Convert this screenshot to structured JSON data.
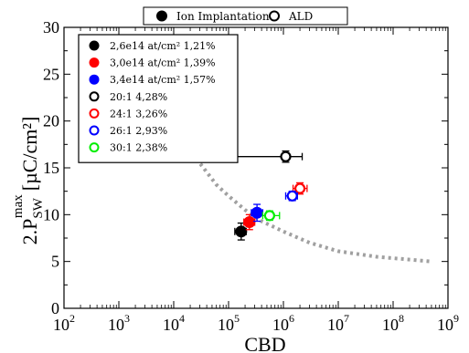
{
  "chart_data": {
    "type": "scatter",
    "x_scale": "log",
    "xlabel": "CBD",
    "ylabel_main": "2.P",
    "ylabel_sub": "SW",
    "ylabel_sup": "max",
    "ylabel_unit": "[µC/cm²]",
    "xlim": [
      100,
      1000000000
    ],
    "ylim": [
      0,
      30
    ],
    "x_ticks": [
      {
        "value": 100,
        "base": "10",
        "exp": "2"
      },
      {
        "value": 1000,
        "base": "10",
        "exp": "3"
      },
      {
        "value": 10000,
        "base": "10",
        "exp": "4"
      },
      {
        "value": 100000,
        "base": "10",
        "exp": "5"
      },
      {
        "value": 1000000,
        "base": "10",
        "exp": "6"
      },
      {
        "value": 10000000,
        "base": "10",
        "exp": "7"
      },
      {
        "value": 100000000,
        "base": "10",
        "exp": "8"
      },
      {
        "value": 1000000000,
        "base": "10",
        "exp": "9"
      }
    ],
    "y_ticks": [
      0,
      5,
      10,
      15,
      20,
      25,
      30
    ],
    "top_legend": [
      {
        "label": "Ion Implantation",
        "marker": "filled"
      },
      {
        "label": "ALD",
        "marker": "open"
      }
    ],
    "series": [
      {
        "name": "2,6e14 at/cm² 1,21%",
        "color": "#000000",
        "filled": true,
        "x": 170000,
        "y": 8.2,
        "x_low": 130000,
        "x_high": 210000,
        "y_err": 0.9
      },
      {
        "name": "3,0e14 at/cm² 1,39%",
        "color": "#ff0000",
        "filled": true,
        "x": 240000,
        "y": 9.2,
        "x_low": 190000,
        "x_high": 300000,
        "y_err": 0.8
      },
      {
        "name": "3,4e14 at/cm² 1,57%",
        "color": "#0000ff",
        "filled": true,
        "x": 330000,
        "y": 10.2,
        "x_low": 260000,
        "x_high": 420000,
        "y_err": 0.9
      },
      {
        "name": "20:1 4,28%",
        "color": "#000000",
        "filled": false,
        "x": 1100000,
        "y": 16.2,
        "x_low": 140000,
        "x_high": 2200000,
        "y_err": 0.6
      },
      {
        "name": "24:1 3,26%",
        "color": "#ff0000",
        "filled": false,
        "x": 2000000,
        "y": 12.8,
        "x_low": 1500000,
        "x_high": 2700000,
        "y_err": 0.6
      },
      {
        "name": "26:1 2,93%",
        "color": "#0000ff",
        "filled": false,
        "x": 1450000,
        "y": 12.0,
        "x_low": 1100000,
        "x_high": 1800000,
        "y_err": 0.5
      },
      {
        "name": "30:1 2,38%",
        "color": "#00ee00",
        "filled": false,
        "x": 560000,
        "y": 9.9,
        "x_low": 420000,
        "x_high": 850000,
        "y_err": 0.5
      }
    ],
    "trend_line": {
      "style": "dotted",
      "color": "#a0a0a0",
      "points": [
        [
          18000,
          17.8
        ],
        [
          30000,
          15.5
        ],
        [
          60000,
          13.2
        ],
        [
          100000,
          12.0
        ],
        [
          200000,
          10.5
        ],
        [
          400000,
          9.3
        ],
        [
          1000000,
          8.2
        ],
        [
          3000000,
          7.0
        ],
        [
          10000000,
          6.1
        ],
        [
          50000000,
          5.5
        ],
        [
          200000000,
          5.2
        ],
        [
          500000000,
          5.0
        ]
      ]
    }
  }
}
